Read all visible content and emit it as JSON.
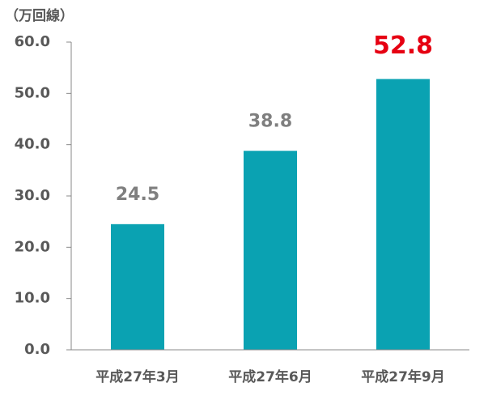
{
  "chart_data": {
    "type": "bar",
    "y_label": "（万回線）",
    "categories": [
      "平成27年3月",
      "平成27年6月",
      "平成27年9月"
    ],
    "values": [
      24.5,
      38.8,
      52.8
    ],
    "color": "#0aa2b2",
    "label_color": "#7f7f7f",
    "highlight": 2,
    "highlight_color": "#e60012",
    "ylim": [
      0,
      60
    ],
    "yticks": [
      {
        "value": 0,
        "label": "0.0"
      },
      {
        "value": 10,
        "label": "10.0"
      },
      {
        "value": 20,
        "label": "20.0"
      },
      {
        "value": 30,
        "label": "30.0"
      },
      {
        "value": 40,
        "label": "40.0"
      },
      {
        "value": 50,
        "label": "50.0"
      },
      {
        "value": 60,
        "label": "60.0"
      }
    ]
  }
}
